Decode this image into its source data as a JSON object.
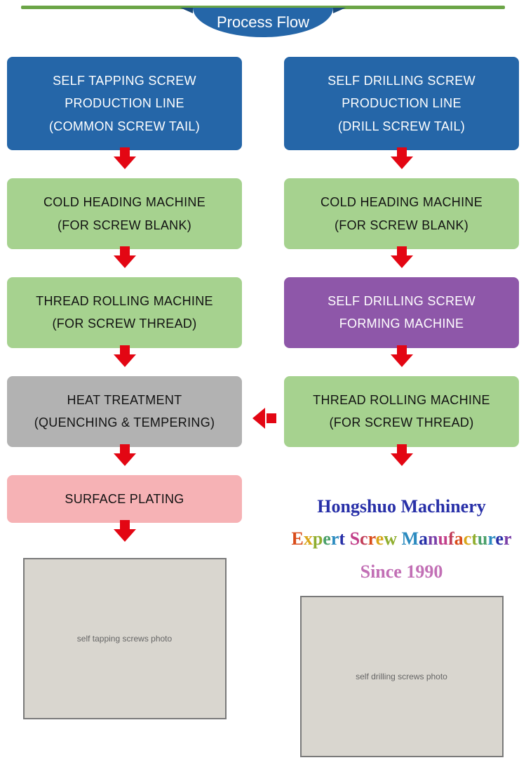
{
  "title": "Process Flow",
  "top_line_color": "#6ba547",
  "banner_color": "#2566a8",
  "arrow_color": "#e30613",
  "left_column": {
    "nodes": [
      {
        "bg": "blue",
        "lines": [
          "SELF TAPPING SCREW",
          "PRODUCTION LINE",
          "(COMMON SCREW TAIL)"
        ]
      },
      {
        "bg": "green",
        "lines": [
          "COLD HEADING MACHINE",
          "(FOR SCREW BLANK)"
        ]
      },
      {
        "bg": "green",
        "lines": [
          "THREAD ROLLING MACHINE",
          "(FOR SCREW THREAD)"
        ]
      },
      {
        "bg": "gray",
        "lines": [
          "HEAT TREATMENT",
          "(QUENCHING & TEMPERING)"
        ]
      },
      {
        "bg": "pink",
        "lines": [
          "SURFACE PLATING"
        ]
      }
    ],
    "photo_alt": "self tapping screws photo"
  },
  "right_column": {
    "nodes": [
      {
        "bg": "blue",
        "lines": [
          "SELF DRILLING SCREW",
          "PRODUCTION LINE",
          "(DRILL SCREW TAIL)"
        ]
      },
      {
        "bg": "green",
        "lines": [
          "COLD HEADING MACHINE",
          "(FOR SCREW BLANK)"
        ]
      },
      {
        "bg": "purple",
        "lines": [
          "SELF DRILLING SCREW",
          "FORMING MACHINE"
        ]
      },
      {
        "bg": "green",
        "lines": [
          "THREAD ROLLING MACHINE",
          "(FOR SCREW THREAD)"
        ]
      }
    ],
    "photo_alt": "self drilling screws photo"
  },
  "cross_arrow": {
    "from": "right_column.nodes.3",
    "to": "left_column.nodes.3",
    "direction": "left"
  },
  "brand": {
    "line1": "Hongshuo Machinery",
    "line2": "Expert Screw Manufacturer",
    "line3": "Since 1990",
    "line2_colors": [
      "#d94c1a",
      "#d9a61a",
      "#8fae2e",
      "#4aa06a",
      "#2a8abf",
      "#2830a8",
      "#7a3fa8",
      "#c23f8a",
      "#c23f5a"
    ]
  },
  "box_colors": {
    "blue": "#2566a8",
    "green": "#a6d28f",
    "purple": "#8e57a9",
    "gray": "#b2b2b2",
    "pink": "#f6b2b5"
  }
}
